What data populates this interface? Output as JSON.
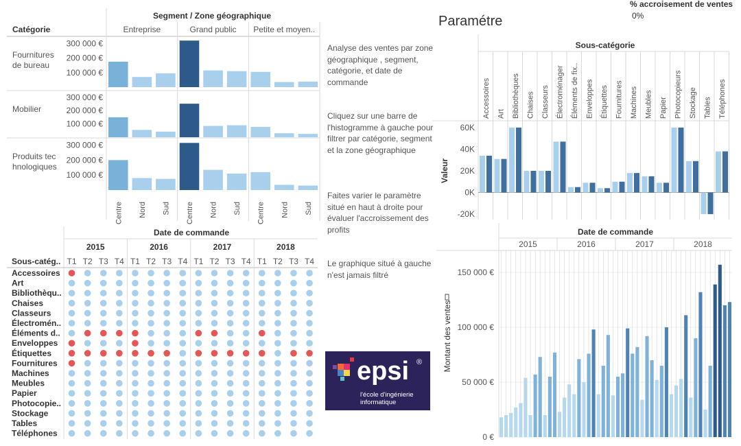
{
  "top_left_chart": {
    "header_title": "Segment  / Zone géographique",
    "row_header": "Catégorie",
    "segments": [
      "Entreprise",
      "Grand public",
      "Petite et moyen.."
    ],
    "regions": [
      "Centre",
      "Nord",
      "Sud"
    ],
    "rows": [
      {
        "label": "Fournitures de bureau",
        "ticks": [
          "300 000 €",
          "200 000 €",
          "100 000 €"
        ],
        "values": [
          [
            175000,
            70000,
            95000
          ],
          [
            320000,
            115000,
            110000
          ],
          [
            105000,
            35000,
            38000
          ]
        ]
      },
      {
        "label": "Mobilier",
        "ticks": [
          "300 000 €",
          "200 000 €",
          "100 000 €"
        ],
        "values": [
          [
            150000,
            55000,
            42000
          ],
          [
            252000,
            85000,
            90000
          ],
          [
            78000,
            30000,
            25000
          ]
        ]
      },
      {
        "label": "Produits tec hnologiques",
        "ticks": [
          "300 000 €",
          "200 000 €",
          "100 000 €"
        ],
        "values": [
          [
            200000,
            80000,
            75000
          ],
          [
            315000,
            135000,
            110000
          ],
          [
            120000,
            35000,
            30000
          ]
        ]
      }
    ],
    "max": 330000
  },
  "notes": [
    "Analyse des ventes par zone géographique , segment, catégorie, et date de commande",
    "Cliquez sur une barre de l'histogramme à gauche  pour filtrer par catégorie, segment et la zone géographique",
    "Faites varier le paramètre situé en haut à droite pour évaluer l'accroissement des profits",
    "Le graphique situé à gauche  n'est jamais filtré"
  ],
  "parameter": {
    "title": "Paramétre",
    "label": "% accroisement de ventes",
    "value": "0%"
  },
  "subcat_chart": {
    "header_title": "Sous-catégorie",
    "ylabel": "Valeur",
    "yticks": [
      "60K",
      "40K",
      "20K",
      "0K",
      "-20K"
    ],
    "categories": [
      "Accessoires",
      "Art",
      "Bibliothèques",
      "Chaises",
      "Classeurs",
      "Électroménager",
      "Éléments de fix..",
      "Enveloppes",
      "Étiquettes",
      "Fournitures",
      "Machines",
      "Meubles",
      "Papier",
      "Photocopieurs",
      "Stockage",
      "Tables",
      "Téléphones"
    ],
    "series": [
      {
        "values": [
          34000,
          31000,
          60000,
          20000,
          20000,
          47000,
          5000,
          9000,
          4000,
          10000,
          18000,
          15000,
          9000,
          60000,
          29000,
          -20000,
          38000
        ]
      },
      {
        "values": [
          34000,
          31000,
          60000,
          20000,
          20000,
          47000,
          5000,
          9000,
          4000,
          10000,
          18000,
          15000,
          9000,
          60000,
          29000,
          -20000,
          38000
        ]
      }
    ],
    "ymin": -25000,
    "ymax": 65000
  },
  "dot_matrix": {
    "header_title": "Date de commande",
    "row_header": "Sous-catég..",
    "years": [
      "2015",
      "2016",
      "2017",
      "2018"
    ],
    "quarters": [
      "T1",
      "T2",
      "T3",
      "T4"
    ],
    "rows": [
      {
        "label": "Accessoires",
        "flags": [
          1,
          0,
          0,
          0,
          0,
          0,
          0,
          0,
          0,
          0,
          0,
          0,
          0,
          0,
          0,
          0
        ]
      },
      {
        "label": "Art",
        "flags": [
          0,
          0,
          0,
          0,
          0,
          0,
          0,
          0,
          0,
          0,
          0,
          0,
          0,
          0,
          0,
          0
        ]
      },
      {
        "label": "Bibliothèqu..",
        "flags": [
          0,
          0,
          0,
          0,
          0,
          0,
          0,
          0,
          0,
          0,
          0,
          0,
          0,
          0,
          0,
          0
        ]
      },
      {
        "label": "Chaises",
        "flags": [
          0,
          0,
          0,
          0,
          0,
          0,
          0,
          0,
          0,
          0,
          0,
          0,
          0,
          0,
          0,
          0
        ]
      },
      {
        "label": "Classeurs",
        "flags": [
          0,
          0,
          0,
          0,
          0,
          0,
          0,
          0,
          0,
          0,
          0,
          0,
          0,
          0,
          0,
          0
        ]
      },
      {
        "label": "Électromén..",
        "flags": [
          0,
          0,
          0,
          0,
          0,
          0,
          0,
          0,
          0,
          0,
          0,
          0,
          0,
          0,
          0,
          0
        ]
      },
      {
        "label": "Éléments d..",
        "flags": [
          0,
          1,
          1,
          1,
          1,
          0,
          0,
          0,
          1,
          1,
          0,
          0,
          1,
          0,
          0,
          0
        ]
      },
      {
        "label": "Enveloppes",
        "flags": [
          1,
          0,
          0,
          0,
          1,
          0,
          0,
          0,
          0,
          0,
          0,
          0,
          0,
          0,
          0,
          0
        ]
      },
      {
        "label": "Étiquettes",
        "flags": [
          1,
          1,
          1,
          1,
          1,
          1,
          1,
          0,
          1,
          1,
          1,
          1,
          1,
          0,
          1,
          1
        ]
      },
      {
        "label": "Fournitures",
        "flags": [
          1,
          0,
          0,
          0,
          0,
          0,
          0,
          0,
          0,
          0,
          0,
          0,
          0,
          0,
          0,
          0
        ]
      },
      {
        "label": "Machines",
        "flags": [
          0,
          0,
          0,
          0,
          0,
          0,
          0,
          0,
          0,
          0,
          0,
          0,
          0,
          0,
          0,
          0
        ]
      },
      {
        "label": "Meubles",
        "flags": [
          0,
          0,
          0,
          0,
          0,
          0,
          0,
          0,
          0,
          0,
          0,
          0,
          0,
          0,
          0,
          0
        ]
      },
      {
        "label": "Papier",
        "flags": [
          0,
          0,
          0,
          0,
          0,
          0,
          0,
          0,
          0,
          0,
          0,
          0,
          0,
          0,
          0,
          0
        ]
      },
      {
        "label": "Photocopie..",
        "flags": [
          0,
          0,
          0,
          0,
          0,
          0,
          0,
          0,
          0,
          0,
          0,
          0,
          0,
          0,
          0,
          0
        ]
      },
      {
        "label": "Stockage",
        "flags": [
          0,
          0,
          0,
          0,
          0,
          0,
          0,
          0,
          0,
          0,
          0,
          0,
          0,
          0,
          0,
          0
        ]
      },
      {
        "label": "Tables",
        "flags": [
          0,
          0,
          0,
          0,
          0,
          0,
          0,
          0,
          0,
          0,
          0,
          0,
          0,
          0,
          0,
          0
        ]
      },
      {
        "label": "Téléphones",
        "flags": [
          0,
          0,
          0,
          0,
          0,
          0,
          0,
          0,
          0,
          0,
          0,
          0,
          0,
          0,
          0,
          0
        ]
      }
    ],
    "colors": {
      "normal": "#a8d0ec",
      "flag": "#e45756"
    }
  },
  "sales_chart": {
    "header_title": "Date de commande",
    "years": [
      "2015",
      "2016",
      "2017",
      "2018"
    ],
    "ylabel": "Montant des ventes",
    "yticks": [
      "150 000 €",
      "100 000 €",
      "50 000 €",
      "0 €"
    ],
    "ymax": 165000,
    "values": [
      18000,
      20000,
      22000,
      27000,
      31000,
      54000,
      20000,
      57000,
      73000,
      20000,
      55000,
      77000,
      23000,
      36000,
      48000,
      39000,
      71000,
      50000,
      76000,
      98000,
      39000,
      65000,
      93000,
      38000,
      55000,
      58000,
      99000,
      76000,
      82000,
      34000,
      92000,
      70000,
      52000,
      65000,
      100000,
      39000,
      47000,
      53000,
      111000,
      36000,
      90000,
      132000,
      25000,
      65000,
      139000,
      157000,
      120000,
      123000
    ]
  },
  "colors": {
    "light": "#a8d0ec",
    "mid": "#79b2d9",
    "dark": "#2e5a8a",
    "grid": "#d9d9d9",
    "text": "#555555"
  },
  "logo": {
    "word": "epsi",
    "reg": "®",
    "tagline": "l'école d'ingénierie\ninformatique"
  }
}
